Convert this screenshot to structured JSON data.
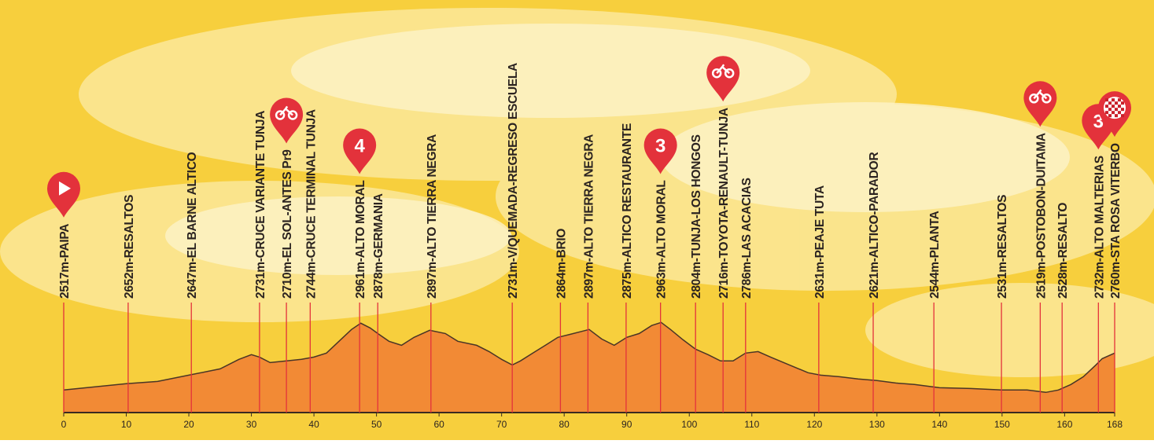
{
  "chart_data": {
    "type": "area",
    "x": [
      0,
      5,
      10,
      15,
      20,
      25,
      28,
      30,
      31.3,
      33,
      35.6,
      38,
      40,
      42,
      44,
      46,
      47.5,
      49,
      50.2,
      52,
      54,
      56,
      58.5,
      61,
      63,
      66,
      68,
      70,
      71.7,
      73,
      75,
      77,
      79,
      81,
      83,
      84,
      86,
      88,
      90,
      92,
      94,
      95.5,
      97,
      99,
      101,
      103,
      105,
      107,
      109,
      111,
      113,
      116,
      119,
      121,
      124,
      127,
      130,
      133,
      136,
      140,
      145,
      150,
      154,
      157,
      159,
      161,
      163,
      165,
      166,
      168
    ],
    "values": [
      2517,
      2538,
      2558,
      2573,
      2614,
      2655,
      2717,
      2748,
      2732,
      2696,
      2707,
      2717,
      2732,
      2758,
      2835,
      2912,
      2953,
      2922,
      2886,
      2835,
      2809,
      2861,
      2907,
      2886,
      2835,
      2809,
      2768,
      2717,
      2681,
      2707,
      2758,
      2809,
      2861,
      2881,
      2902,
      2912,
      2850,
      2809,
      2861,
      2886,
      2938,
      2958,
      2912,
      2845,
      2784,
      2748,
      2707,
      2707,
      2758,
      2768,
      2732,
      2681,
      2630,
      2614,
      2604,
      2589,
      2579,
      2563,
      2553,
      2532,
      2527,
      2517,
      2517,
      2502,
      2517,
      2553,
      2604,
      2681,
      2722,
      2758
    ],
    "color": "#f28a35",
    "line_color": "#4a3526",
    "xlim": [
      0,
      168
    ],
    "ylim": [
      2370,
      2970
    ],
    "xticks": [
      0,
      10,
      20,
      30,
      40,
      50,
      60,
      70,
      80,
      90,
      100,
      110,
      120,
      130,
      140,
      150,
      160,
      168
    ],
    "waypoints": [
      {
        "x": 0,
        "label": "2517m-PAIPA"
      },
      {
        "x": 10.3,
        "label": "2652m-RESALTOS"
      },
      {
        "x": 20.4,
        "label": "2647m-EL BARNE ALTICO"
      },
      {
        "x": 31.3,
        "label": "2731m-CRUCE VARIANTE TUNJA"
      },
      {
        "x": 35.6,
        "label": "2710m-EL SOL-ANTES Pr9"
      },
      {
        "x": 39.4,
        "label": "2744m-CRUCE TERMINAL TUNJA"
      },
      {
        "x": 47.3,
        "label": "2961m-ALTO MORAL"
      },
      {
        "x": 50.2,
        "label": "2878m-GERMANIA"
      },
      {
        "x": 58.7,
        "label": "2897m-ALTO TIERRA NEGRA"
      },
      {
        "x": 71.7,
        "label": "2731m-V/QUEMADA-REGRESO ESCUELA"
      },
      {
        "x": 79.4,
        "label": "2864m-BRIO"
      },
      {
        "x": 83.8,
        "label": "2897m-ALTO TIERRA NEGRA"
      },
      {
        "x": 89.9,
        "label": "2875m-ALTICO RESTAURANTE"
      },
      {
        "x": 95.4,
        "label": "2963m-ALTO MORAL"
      },
      {
        "x": 101,
        "label": "2804m-TUNJA-LOS HONGOS"
      },
      {
        "x": 105.4,
        "label": "2716m-TOYOTA-RENAULT-TUNJA"
      },
      {
        "x": 109,
        "label": "2786m-LAS ACACIAS"
      },
      {
        "x": 120.7,
        "label": "2631m-PEAJE TUTA"
      },
      {
        "x": 129.4,
        "label": "2621m-ALTICO-PARADOR"
      },
      {
        "x": 139.1,
        "label": "2544m-PLANTA"
      },
      {
        "x": 149.9,
        "label": "2531m-RESALTOS"
      },
      {
        "x": 156.1,
        "label": "2519m-POSTOBON-DUITAMA"
      },
      {
        "x": 159.6,
        "label": "2528m-RESALTO"
      },
      {
        "x": 165.4,
        "label": "2732m-ALTO MALTERIAS"
      },
      {
        "x": 168,
        "label": "2760m-STA ROSA VITERBO"
      }
    ],
    "markers": [
      {
        "x": 0,
        "icon": "start"
      },
      {
        "x": 35.6,
        "icon": "sprint"
      },
      {
        "x": 47.3,
        "label": "4"
      },
      {
        "x": 95.4,
        "label": "3"
      },
      {
        "x": 105.4,
        "icon": "sprint"
      },
      {
        "x": 156.1,
        "icon": "sprint"
      },
      {
        "x": 165.4,
        "label": "3"
      },
      {
        "x": 168,
        "icon": "finish"
      }
    ],
    "marker_color": "#e3323b",
    "waypoint_line_color": "#e3323b"
  }
}
